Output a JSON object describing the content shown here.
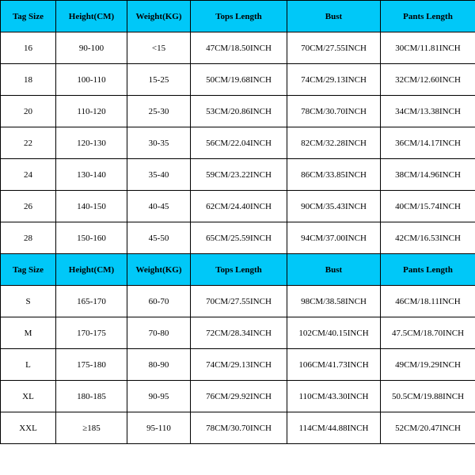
{
  "colors": {
    "header_bg": "#00c8f8",
    "border": "#000000",
    "text": "#000000",
    "bg": "#ffffff"
  },
  "table1": {
    "headers": [
      "Tag Size",
      "Height(CM)",
      "Weight(KG)",
      "Tops Length",
      "Bust",
      "Pants Length"
    ],
    "rows": [
      [
        "16",
        "90-100",
        "<15",
        "47CM/18.50INCH",
        "70CM/27.55INCH",
        "30CM/11.81INCH"
      ],
      [
        "18",
        "100-110",
        "15-25",
        "50CM/19.68INCH",
        "74CM/29.13INCH",
        "32CM/12.60INCH"
      ],
      [
        "20",
        "110-120",
        "25-30",
        "53CM/20.86INCH",
        "78CM/30.70INCH",
        "34CM/13.38INCH"
      ],
      [
        "22",
        "120-130",
        "30-35",
        "56CM/22.04INCH",
        "82CM/32.28INCH",
        "36CM/14.17INCH"
      ],
      [
        "24",
        "130-140",
        "35-40",
        "59CM/23.22INCH",
        "86CM/33.85INCH",
        "38CM/14.96INCH"
      ],
      [
        "26",
        "140-150",
        "40-45",
        "62CM/24.40INCH",
        "90CM/35.43INCH",
        "40CM/15.74INCH"
      ],
      [
        "28",
        "150-160",
        "45-50",
        "65CM/25.59INCH",
        "94CM/37.00INCH",
        "42CM/16.53INCH"
      ]
    ]
  },
  "table2": {
    "headers": [
      "Tag Size",
      "Height(CM)",
      "Weight(KG)",
      "Tops Length",
      "Bust",
      "Pants Length"
    ],
    "rows": [
      [
        "S",
        "165-170",
        "60-70",
        "70CM/27.55INCH",
        "98CM/38.58INCH",
        "46CM/18.11INCH"
      ],
      [
        "M",
        "170-175",
        "70-80",
        "72CM/28.34INCH",
        "102CM/40.15INCH",
        "47.5CM/18.70INCH"
      ],
      [
        "L",
        "175-180",
        "80-90",
        "74CM/29.13INCH",
        "106CM/41.73INCH",
        "49CM/19.29INCH"
      ],
      [
        "XL",
        "180-185",
        "90-95",
        "76CM/29.92INCH",
        "110CM/43.30INCH",
        "50.5CM/19.88INCH"
      ],
      [
        "XXL",
        "≥185",
        "95-110",
        "78CM/30.70INCH",
        "114CM/44.88INCH",
        "52CM/20.47INCH"
      ]
    ]
  }
}
